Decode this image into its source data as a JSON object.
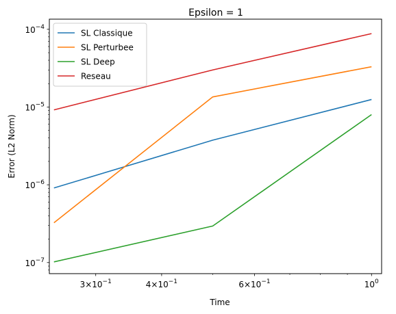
{
  "chart_data": {
    "type": "line",
    "title": "Epsilon = 1",
    "xlabel": "Time",
    "ylabel": "Error (L2 Norm)",
    "xscale": "log",
    "yscale": "log",
    "xlim": [
      0.245,
      1.045
    ],
    "ylim": [
      7.2e-08,
      0.000135
    ],
    "x": [
      0.25,
      0.5,
      1.0
    ],
    "x_ticks": [
      {
        "value": 0.3,
        "base": "3×10",
        "exp": "−1"
      },
      {
        "value": 0.4,
        "base": "4×10",
        "exp": "−1"
      },
      {
        "value": 0.6,
        "base": "6×10",
        "exp": "−1"
      },
      {
        "value": 1.0,
        "base": "10",
        "exp": "0"
      }
    ],
    "y_ticks": [
      {
        "value": 1e-07,
        "base": "10",
        "exp": "−7"
      },
      {
        "value": 1e-06,
        "base": "10",
        "exp": "−6"
      },
      {
        "value": 1e-05,
        "base": "10",
        "exp": "−5"
      },
      {
        "value": 0.0001,
        "base": "10",
        "exp": "−4"
      }
    ],
    "series": [
      {
        "name": "SL Classique",
        "color": "#1f77b4",
        "values": [
          9.1e-07,
          3.75e-06,
          1.25e-05
        ]
      },
      {
        "name": "SL Perturbee",
        "color": "#ff7f0e",
        "values": [
          3.25e-07,
          1.35e-05,
          3.3e-05
        ]
      },
      {
        "name": "SL Deep",
        "color": "#2ca02c",
        "values": [
          1.02e-07,
          2.95e-07,
          8e-06
        ]
      },
      {
        "name": "Reseau",
        "color": "#d62728",
        "values": [
          9.2e-06,
          3e-05,
          8.8e-05
        ]
      }
    ],
    "legend_position": "upper-left"
  }
}
